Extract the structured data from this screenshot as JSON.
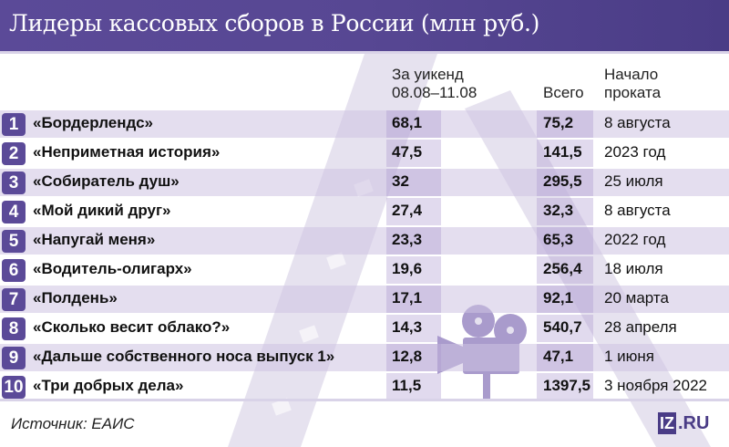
{
  "title": "Лидеры кассовых сборов в России (млн руб.)",
  "columns": {
    "weekend": [
      "За уикенд",
      "08.08–11.08"
    ],
    "total": "Всего",
    "start": [
      "Начало",
      "проката"
    ]
  },
  "rows": [
    {
      "rank": "1",
      "name": "«Бордерлендс»",
      "weekend": "68,1",
      "total": "75,2",
      "start": "8 августа"
    },
    {
      "rank": "2",
      "name": "«Неприметная история»",
      "weekend": "47,5",
      "total": "141,5",
      "start": "2023 год"
    },
    {
      "rank": "3",
      "name": "«Собиратель душ»",
      "weekend": "32",
      "total": "295,5",
      "start": "25 июля"
    },
    {
      "rank": "4",
      "name": "«Мой дикий друг»",
      "weekend": "27,4",
      "total": "32,3",
      "start": "8 августа"
    },
    {
      "rank": "5",
      "name": "«Напугай меня»",
      "weekend": "23,3",
      "total": "65,3",
      "start": "2022 год"
    },
    {
      "rank": "6",
      "name": "«Водитель-олигарх»",
      "weekend": "19,6",
      "total": "256,4",
      "start": "18 июля"
    },
    {
      "rank": "7",
      "name": "«Полдень»",
      "weekend": "17,1",
      "total": "92,1",
      "start": "20 марта"
    },
    {
      "rank": "8",
      "name": "«Сколько весит облако?»",
      "weekend": "14,3",
      "total": "540,7",
      "start": "28 апреля"
    },
    {
      "rank": "9",
      "name": "«Дальше собственного носа выпуск 1»",
      "weekend": "12,8",
      "total": "47,1",
      "start": "1 июня"
    },
    {
      "rank": "10",
      "name": "«Три добрых дела»",
      "weekend": "11,5",
      "total": "1397,5",
      "start": "3 ноября 2022"
    }
  ],
  "footer": {
    "source": "Источник: ЕАИС",
    "logo_box": "IZ",
    "logo_suffix": ".RU"
  },
  "colors": {
    "accent": "#5b4a98",
    "row_shade": "#e6e0f0",
    "column_highlight": "#cdc3e1"
  },
  "icons": [
    "film-strip-icon",
    "film-projector-icon"
  ]
}
